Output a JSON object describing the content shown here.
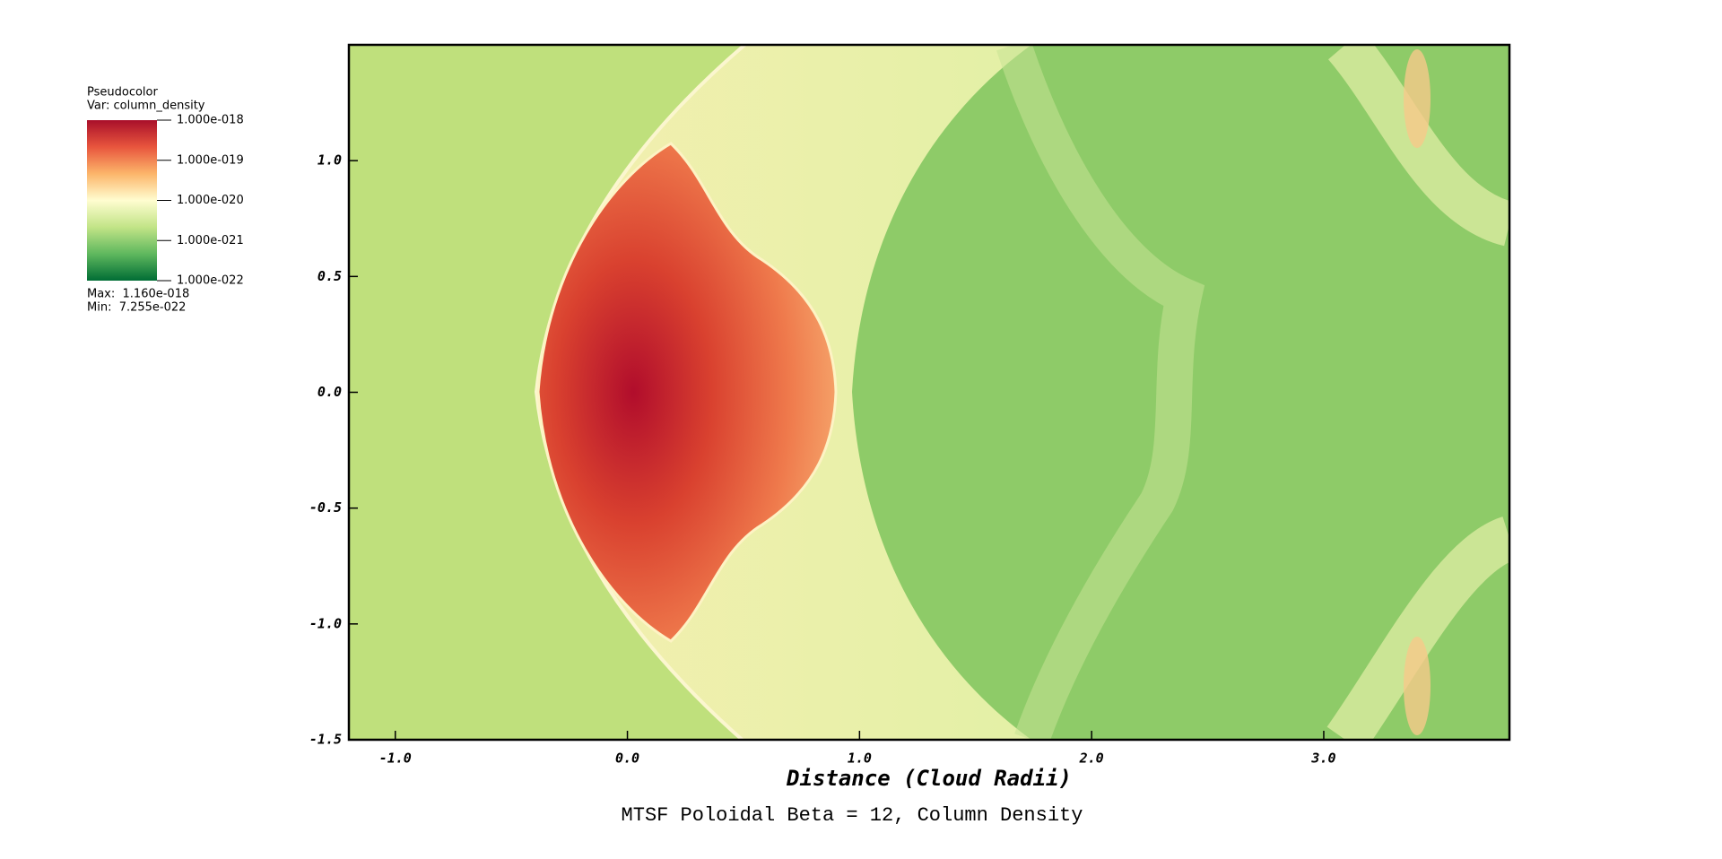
{
  "chart_data": {
    "type": "pseudocolor",
    "title": "MTSF Poloidal Beta = 12, Column Density",
    "x_label": "Distance (Cloud Radii)",
    "xlim": [
      -1.2,
      3.8
    ],
    "ylim": [
      -1.5,
      1.5
    ],
    "xticks": [
      {
        "value": -1,
        "label": "-1.0"
      },
      {
        "value": 0,
        "label": "0.0"
      },
      {
        "value": 1,
        "label": "1.0"
      },
      {
        "value": 2,
        "label": "2.0"
      },
      {
        "value": 3,
        "label": "3.0"
      }
    ],
    "yticks": [
      {
        "value": 1,
        "label": "1.0"
      },
      0.5,
      {
        "value": 0,
        "label": "0.0"
      },
      -0.5,
      {
        "value": -1,
        "label": "-1.0"
      },
      {
        "value": -1.5,
        "label": "-1.5"
      }
    ],
    "legend": {
      "title": "Pseudocolor",
      "variable": "Var: column_density",
      "scale": "log",
      "clim": [
        1e-22,
        1e-18
      ],
      "ticks": [
        {
          "value": 1e-18,
          "label": "1.000e-018"
        },
        {
          "value": 1e-19,
          "label": "1.000e-019"
        },
        {
          "value": 1e-20,
          "label": "1.000e-020"
        },
        {
          "value": 1e-21,
          "label": "1.000e-021"
        },
        {
          "value": 1e-22,
          "label": "1.000e-022"
        }
      ],
      "colormap": [
        "#006d35",
        "#5fb85e",
        "#c2e487",
        "#fffdd0",
        "#fcb56a",
        "#e8553d",
        "#a90f2a"
      ],
      "max": "Max:  1.160e-018",
      "min": "Min:  7.255e-022"
    }
  }
}
